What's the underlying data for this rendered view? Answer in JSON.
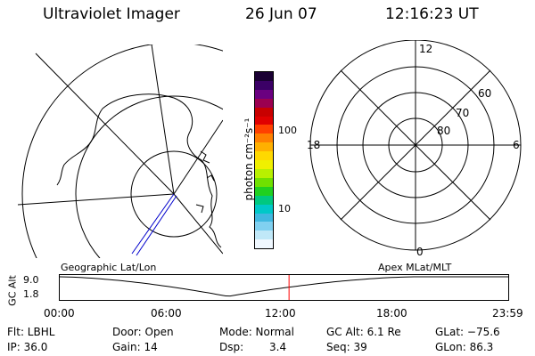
{
  "header": {
    "title": "Ultraviolet Imager",
    "date": "26 Jun 07",
    "time": "12:16:23 UT"
  },
  "colorbar": {
    "label": "photon cm⁻²s⁻¹",
    "tick_high": "100",
    "tick_low": "10",
    "colors": [
      "#1a0033",
      "#3b0066",
      "#6a0080",
      "#9b0050",
      "#c80000",
      "#e00000",
      "#ff4000",
      "#ff8000",
      "#ffb000",
      "#ffd800",
      "#f0f000",
      "#b8f000",
      "#70e000",
      "#20d020",
      "#00c880",
      "#00c8c8",
      "#40b8e0",
      "#80d0f0",
      "#c0e8f8",
      "#f0f8ff"
    ]
  },
  "polar_plot": {
    "labels": {
      "top": "12",
      "left": "18",
      "right": "6",
      "bottom": "0"
    },
    "lat_labels": [
      "60",
      "70",
      "80"
    ]
  },
  "timeline": {
    "geo_label": "Geographic Lat/Lon",
    "apex_label": "Apex MLat/MLT",
    "axis_label": "GC Alt",
    "y_top": "9.0",
    "y_bottom": "1.8",
    "x_ticks": [
      "00:00",
      "06:00",
      "12:00",
      "18:00",
      "23:59"
    ],
    "current_time_hours": 12.27,
    "marker_color": "#ff0000"
  },
  "info": {
    "flt": "Flt: LBHL",
    "ip": "IP: 36.0",
    "door": "Door: Open",
    "gain": "Gain: 14",
    "mode": "Mode: Normal",
    "dsp_label": "Dsp:",
    "dsp_value": "3.4",
    "gc_alt": "GC Alt: 6.1 Re",
    "seq": "Seq: 39",
    "glat": "GLat: −75.6",
    "glon": "GLon: 86.3"
  }
}
